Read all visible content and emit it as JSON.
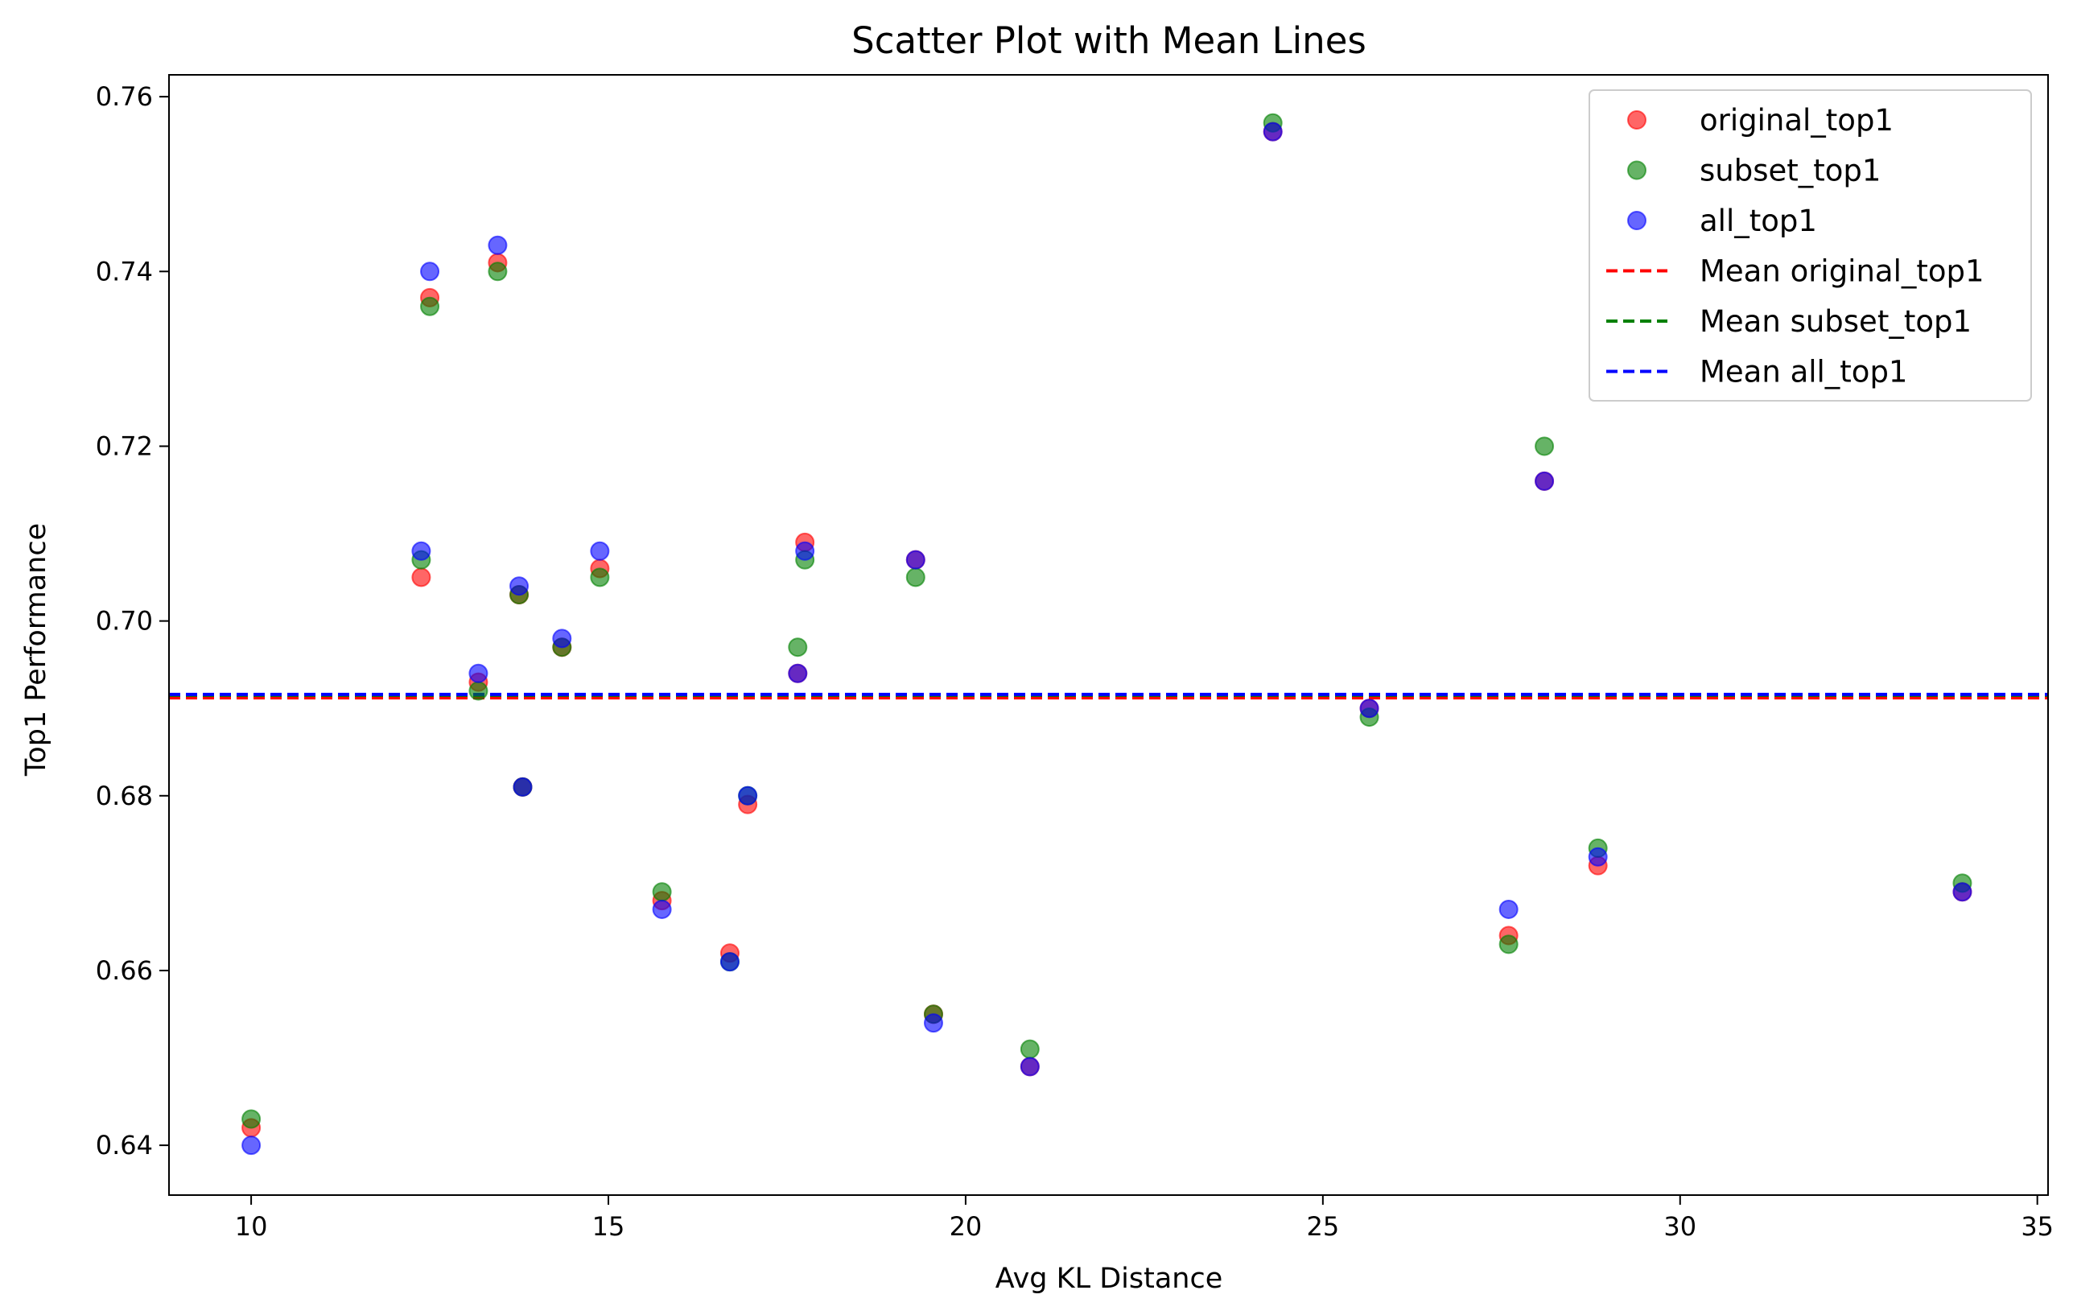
{
  "chart_data": {
    "type": "scatter",
    "title": "Scatter Plot with Mean Lines",
    "xlabel": "Avg KL Distance",
    "ylabel": "Top1 Performance",
    "xlim": [
      8.85,
      35.15
    ],
    "ylim": [
      0.6343,
      0.7625
    ],
    "xticks": [
      10,
      15,
      20,
      25,
      30,
      35
    ],
    "yticks": [
      0.64,
      0.66,
      0.68,
      0.7,
      0.72,
      0.74,
      0.76
    ],
    "ytick_labels": [
      "0.64",
      "0.66",
      "0.68",
      "0.70",
      "0.72",
      "0.74",
      "0.76"
    ],
    "grid": false,
    "legend_position": "top-right",
    "x": [
      10.0,
      12.38,
      12.5,
      13.18,
      13.45,
      13.75,
      13.8,
      14.35,
      14.88,
      15.75,
      16.7,
      16.95,
      17.65,
      17.75,
      19.3,
      19.55,
      20.9,
      24.3,
      25.65,
      27.6,
      28.1,
      28.85,
      33.95
    ],
    "series": [
      {
        "name": "original_top1",
        "color": "#ff0000",
        "values": [
          0.642,
          0.705,
          0.737,
          0.693,
          0.741,
          0.703,
          0.681,
          0.697,
          0.706,
          0.668,
          0.662,
          0.679,
          0.694,
          0.709,
          0.707,
          0.655,
          0.649,
          0.756,
          0.69,
          0.664,
          0.716,
          0.672,
          0.669
        ]
      },
      {
        "name": "subset_top1",
        "color": "#008000",
        "values": [
          0.643,
          0.707,
          0.736,
          0.692,
          0.74,
          0.703,
          0.681,
          0.697,
          0.705,
          0.669,
          0.661,
          0.68,
          0.697,
          0.707,
          0.705,
          0.655,
          0.651,
          0.757,
          0.689,
          0.663,
          0.72,
          0.674,
          0.67
        ]
      },
      {
        "name": "all_top1",
        "color": "#0000ff",
        "values": [
          0.64,
          0.708,
          0.74,
          0.694,
          0.743,
          0.704,
          0.681,
          0.698,
          0.708,
          0.667,
          0.661,
          0.68,
          0.694,
          0.708,
          0.707,
          0.654,
          0.649,
          0.756,
          0.69,
          0.667,
          0.716,
          0.673,
          0.669
        ]
      }
    ],
    "mean_lines": [
      {
        "name": "Mean original_top1",
        "color": "#ff0000",
        "value": 0.6912
      },
      {
        "name": "Mean subset_top1",
        "color": "#008000",
        "value": 0.6915
      },
      {
        "name": "Mean all_top1",
        "color": "#0000ff",
        "value": 0.6916
      }
    ]
  }
}
